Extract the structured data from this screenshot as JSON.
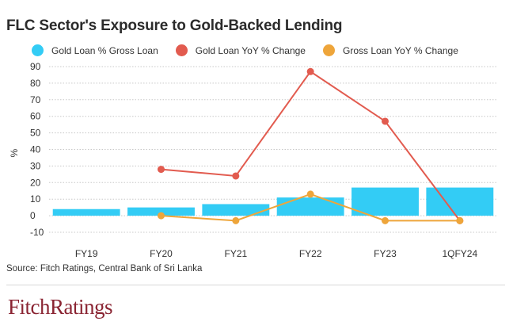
{
  "title": "FLC Sector's Exposure to Gold-Backed Lending",
  "source": "Source: Fitch Ratings, Central Bank of Sri Lanka",
  "logo": "FitchRatings",
  "colors": {
    "bar": "#33ccf5",
    "gold_yoy": "#e25b4f",
    "gross_yoy": "#eea53a",
    "grid": "#c8c8c8"
  },
  "chart_data": {
    "type": "bar",
    "title": "FLC Sector's Exposure to Gold-Backed Lending",
    "xlabel": "",
    "ylabel": "%",
    "categories": [
      "FY19",
      "FY20",
      "FY21",
      "FY22",
      "FY23",
      "1QFY24"
    ],
    "yticks": [
      90,
      80,
      70,
      60,
      50,
      40,
      30,
      20,
      10,
      0,
      -10
    ],
    "ylim": [
      -10,
      90
    ],
    "grid": true,
    "legend_position": "top",
    "series": [
      {
        "name": "Gold Loan % Gross Loan",
        "kind": "bar",
        "color": "#33ccf5",
        "values": [
          4,
          5,
          7,
          11,
          17,
          17
        ]
      },
      {
        "name": "Gold Loan YoY % Change",
        "kind": "line",
        "color": "#e25b4f",
        "values": [
          null,
          28,
          24,
          87,
          57,
          -3
        ]
      },
      {
        "name": "Gross Loan YoY % Change",
        "kind": "line",
        "color": "#eea53a",
        "values": [
          null,
          0,
          -3,
          13,
          -3,
          -3
        ]
      }
    ]
  }
}
